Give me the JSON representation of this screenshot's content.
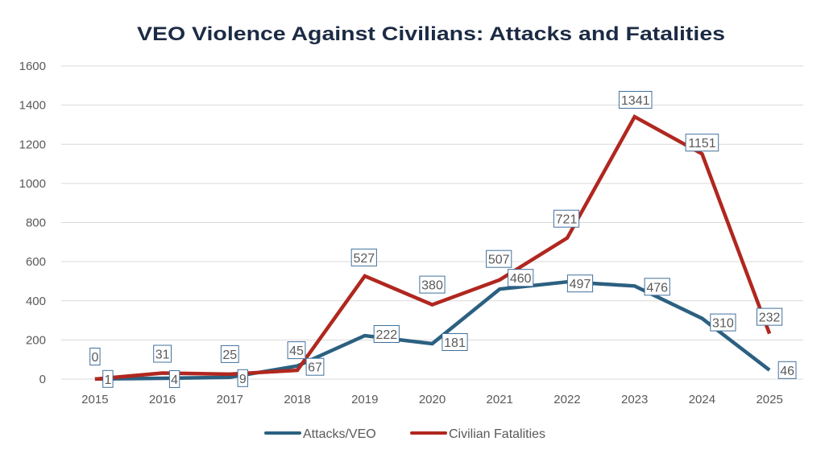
{
  "chart_data": {
    "type": "line",
    "title": "VEO Violence Against Civilians: Attacks and Fatalities",
    "xlabel": "",
    "ylabel": "",
    "categories": [
      "2015",
      "2016",
      "2017",
      "2018",
      "2019",
      "2020",
      "2021",
      "2022",
      "2023",
      "2024",
      "2025"
    ],
    "series": [
      {
        "name": "Attacks/VEO",
        "color": "#2b6080",
        "values": [
          1,
          4,
          9,
          67,
          222,
          181,
          460,
          497,
          476,
          310,
          46
        ]
      },
      {
        "name": "Civilian Fatalities",
        "color": "#b0271f",
        "values": [
          0,
          31,
          25,
          45,
          527,
          380,
          507,
          721,
          1341,
          1151,
          232
        ]
      }
    ],
    "ylim": [
      0,
      1600
    ],
    "yticks": [
      0,
      200,
      400,
      600,
      800,
      1000,
      1200,
      1400,
      1600
    ],
    "grid": true,
    "data_labels": true,
    "legend_position": "bottom"
  }
}
